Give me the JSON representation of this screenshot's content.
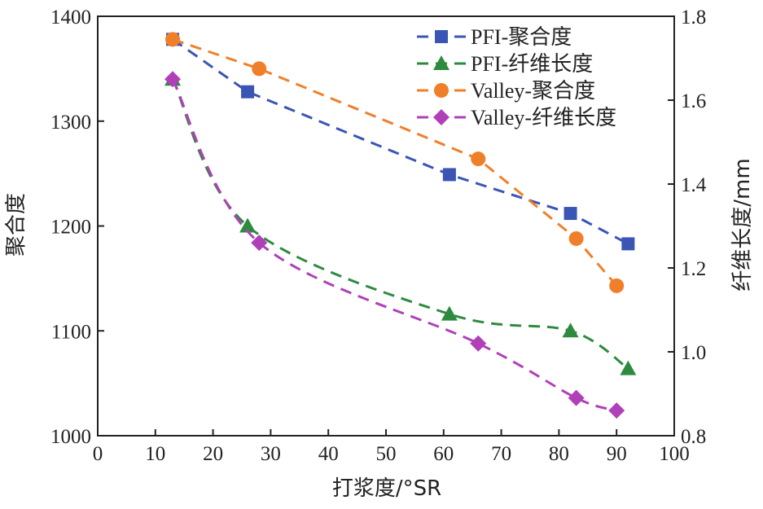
{
  "chart_data": {
    "type": "line",
    "xlabel": "打浆度/°SR",
    "ylabel_left": "聚合度",
    "ylabel_right": "纤维长度/mm",
    "xlim": [
      0,
      100
    ],
    "ylim_left": [
      1000,
      1400
    ],
    "ylim_right": [
      0.8,
      1.8
    ],
    "x_ticks": [
      "0",
      "10",
      "20",
      "30",
      "40",
      "50",
      "60",
      "70",
      "80",
      "90",
      "100"
    ],
    "y_left_ticks": [
      "1000",
      "1100",
      "1200",
      "1300",
      "1400"
    ],
    "y_right_ticks": [
      "0.8",
      "1.0",
      "1.2",
      "1.4",
      "1.6",
      "1.8"
    ],
    "grid": false,
    "legend_position": "top-right",
    "series": [
      {
        "name": "PFI-聚合度",
        "axis": "left",
        "marker": "square",
        "color": "#3a55b4",
        "x": [
          13,
          26,
          61,
          82,
          92
        ],
        "y": [
          1378,
          1328,
          1249,
          1212,
          1183
        ]
      },
      {
        "name": "PFI-纤维长度",
        "axis": "right",
        "marker": "triangle",
        "color": "#2e8b3e",
        "x": [
          13,
          26,
          61,
          82,
          92
        ],
        "y": [
          1.65,
          1.3,
          1.09,
          1.05,
          0.96
        ]
      },
      {
        "name": "Valley-聚合度",
        "axis": "left",
        "marker": "circle",
        "color": "#f07f2a",
        "x": [
          13,
          28,
          66,
          83,
          90
        ],
        "y": [
          1378,
          1350,
          1264,
          1188,
          1143
        ]
      },
      {
        "name": "Valley-纤维长度",
        "axis": "right",
        "marker": "diamond",
        "color": "#b040b8",
        "x": [
          13,
          28,
          66,
          83,
          90
        ],
        "y": [
          1.65,
          1.26,
          1.02,
          0.89,
          0.86
        ]
      }
    ]
  }
}
